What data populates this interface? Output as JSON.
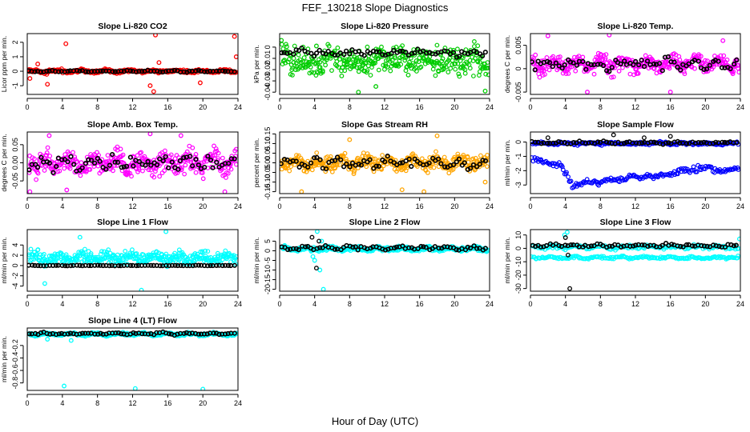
{
  "title": "FEF_130218  Slope Diagnostics",
  "xlabel": "Hour of Day (UTC)",
  "chart_data": [
    {
      "type": "scatter",
      "title": "Slope Li-820 CO2",
      "ylabel": "Licor ppm per min.",
      "xlim": [
        0,
        24
      ],
      "ylim": [
        -1.6,
        2.6
      ],
      "xticks": [
        "0",
        "4",
        "8",
        "12",
        "16",
        "20",
        "24"
      ],
      "yticks": [
        {
          "v": -1,
          "label": "-1"
        },
        {
          "v": 0,
          "label": "0"
        },
        {
          "v": 1,
          "label": "1"
        },
        {
          "v": 2,
          "label": "2"
        }
      ],
      "color": "#ff0000",
      "series": [
        {
          "name": "colored",
          "color": "#ff0000",
          "center": 0.0,
          "spread": 0.12,
          "noise": 0.12,
          "outliers": [
            [
              4.4,
              1.9
            ],
            [
              14.6,
              2.5
            ],
            [
              23.6,
              2.4
            ],
            [
              1.2,
              0.5
            ],
            [
              2.3,
              -0.9
            ],
            [
              23.8,
              1.0
            ],
            [
              14.4,
              -1.4
            ],
            [
              19.7,
              -0.8
            ],
            [
              15.0,
              0.6
            ],
            [
              14.0,
              -1.0
            ],
            [
              0.3,
              -0.5
            ]
          ]
        },
        {
          "name": "reference",
          "color": "#000000",
          "center": 0.0,
          "spread": 0.04,
          "noise": 0.05,
          "outliers": []
        }
      ]
    },
    {
      "type": "scatter",
      "title": "Slope Li-820 Pressure",
      "ylabel": "kPa per min.",
      "xlim": [
        0,
        24
      ],
      "ylim": [
        -0.042,
        0.012
      ],
      "xticks": [
        "0",
        "4",
        "8",
        "12",
        "16",
        "20",
        "24"
      ],
      "yticks": [
        {
          "v": -0.04,
          "label": "-0.04"
        },
        {
          "v": -0.03,
          "label": "-0.03"
        },
        {
          "v": -0.02,
          "label": "-0.02"
        },
        {
          "v": -0.01,
          "label": "-0.01"
        },
        {
          "v": 0.0,
          "label": "0"
        }
      ],
      "color": "#00cc00",
      "series": [
        {
          "name": "colored",
          "color": "#00cc00",
          "center": -0.012,
          "spread": 0.016,
          "noise": 0.006,
          "outliers": [
            [
              0.2,
              0.006
            ],
            [
              4.2,
              0.001
            ],
            [
              9.0,
              -0.04
            ],
            [
              23.5,
              -0.039
            ],
            [
              11.0,
              -0.035
            ]
          ]
        },
        {
          "name": "reference",
          "color": "#000000",
          "center": -0.005,
          "spread": 0.003,
          "noise": 0.003,
          "outliers": []
        }
      ]
    },
    {
      "type": "scatter",
      "title": "Slope Li-820 Temp.",
      "ylabel": "degrees C per min.",
      "xlim": [
        0,
        24
      ],
      "ylim": [
        -0.0055,
        0.0075
      ],
      "xticks": [
        "0",
        "4",
        "8",
        "12",
        "16",
        "20",
        "24"
      ],
      "yticks": [
        {
          "v": -0.005,
          "label": "-0.005"
        },
        {
          "v": 0.0,
          "label": "0"
        },
        {
          "v": 0.005,
          "label": "0.005"
        }
      ],
      "color": "#ff00ff",
      "series": [
        {
          "name": "colored",
          "color": "#ff00ff",
          "center": 0.001,
          "spread": 0.002,
          "noise": 0.0018,
          "outliers": [
            [
              2.0,
              0.007
            ],
            [
              9.0,
              0.0072
            ],
            [
              6.5,
              -0.005
            ],
            [
              16.0,
              -0.005
            ],
            [
              22.0,
              0.006
            ]
          ]
        },
        {
          "name": "reference",
          "color": "#000000",
          "center": 0.001,
          "spread": 0.0015,
          "noise": 0.0012,
          "outliers": []
        }
      ]
    },
    {
      "type": "scatter",
      "title": "Slope Amb. Box Temp.",
      "ylabel": "degrees C per min.",
      "xlim": [
        0,
        24
      ],
      "ylim": [
        -0.085,
        0.085
      ],
      "xticks": [
        "0",
        "4",
        "8",
        "12",
        "16",
        "20",
        "24"
      ],
      "yticks": [
        {
          "v": -0.05,
          "label": "-0.05"
        },
        {
          "v": 0.0,
          "label": "0.00"
        },
        {
          "v": 0.05,
          "label": "0.05"
        }
      ],
      "color": "#ff00ff",
      "series": [
        {
          "name": "colored",
          "color": "#ff00ff",
          "center": 0.0,
          "spread": 0.04,
          "noise": 0.025,
          "outliers": [
            [
              0.3,
              -0.08
            ],
            [
              4.5,
              -0.075
            ],
            [
              17.5,
              0.075
            ],
            [
              22.5,
              -0.08
            ],
            [
              14.0,
              0.08
            ],
            [
              2.5,
              0.075
            ]
          ]
        },
        {
          "name": "reference",
          "color": "#000000",
          "center": 0.0,
          "spread": 0.02,
          "noise": 0.02,
          "outliers": []
        }
      ]
    },
    {
      "type": "scatter",
      "title": "Slope Gas Stream RH",
      "ylabel": "percent per min.",
      "xlim": [
        0,
        24
      ],
      "ylim": [
        -0.16,
        0.16
      ],
      "xticks": [
        "0",
        "4",
        "8",
        "12",
        "16",
        "20",
        "24"
      ],
      "yticks": [
        {
          "v": -0.15,
          "label": "-0.15"
        },
        {
          "v": -0.1,
          "label": "-0.10"
        },
        {
          "v": -0.05,
          "label": "-0.05"
        },
        {
          "v": 0.0,
          "label": "0.00"
        },
        {
          "v": 0.05,
          "label": "0.05"
        },
        {
          "v": 0.1,
          "label": "0.10"
        },
        {
          "v": 0.15,
          "label": "0.15"
        }
      ],
      "color": "#ffa500",
      "series": [
        {
          "name": "colored",
          "color": "#ffa500",
          "center": 0.0,
          "spread": 0.05,
          "noise": 0.035,
          "outliers": [
            [
              2.5,
              -0.15
            ],
            [
              14.0,
              -0.14
            ],
            [
              16.5,
              -0.15
            ],
            [
              18.0,
              0.14
            ],
            [
              8.0,
              0.12
            ],
            [
              23.5,
              -0.1
            ]
          ]
        },
        {
          "name": "reference",
          "color": "#000000",
          "center": 0.0,
          "spread": 0.03,
          "noise": 0.03,
          "outliers": []
        }
      ]
    },
    {
      "type": "scatter",
      "title": "Slope Sample Flow",
      "ylabel": "ml/min per min.",
      "xlim": [
        0,
        24
      ],
      "ylim": [
        -3.6,
        0.7
      ],
      "xticks": [
        "0",
        "4",
        "8",
        "12",
        "16",
        "20",
        "24"
      ],
      "yticks": [
        {
          "v": -3,
          "label": "-3"
        },
        {
          "v": -2,
          "label": "-2"
        },
        {
          "v": -1,
          "label": "-1"
        },
        {
          "v": 0,
          "label": "0"
        }
      ],
      "color": "#0000ff",
      "series": [
        {
          "name": "band-upper",
          "color": "#0000ff",
          "center": -0.1,
          "spread": 0.1,
          "noise": 0.1,
          "outliers": []
        },
        {
          "name": "band-lower",
          "color": "#0000ff",
          "center": -2.2,
          "spread": 0.3,
          "noise": 0.1,
          "path": [
            [
              0.2,
              -1.2
            ],
            [
              2.0,
              -1.4
            ],
            [
              3.5,
              -1.7
            ],
            [
              4.2,
              -2.3
            ],
            [
              4.8,
              -3.1
            ],
            [
              6.0,
              -2.9
            ],
            [
              8.0,
              -2.8
            ],
            [
              10.0,
              -2.6
            ],
            [
              12.0,
              -2.4
            ],
            [
              14.0,
              -2.5
            ],
            [
              16.0,
              -2.2
            ],
            [
              18.0,
              -2.0
            ],
            [
              20.0,
              -1.8
            ],
            [
              22.0,
              -2.0
            ],
            [
              23.9,
              -1.8
            ]
          ],
          "outliers": []
        },
        {
          "name": "reference",
          "color": "#000000",
          "center": -0.05,
          "spread": 0.1,
          "noise": 0.08,
          "outliers": [
            [
              9.5,
              0.5
            ],
            [
              13.0,
              0.3
            ],
            [
              16.0,
              0.4
            ],
            [
              2.0,
              0.3
            ]
          ]
        }
      ]
    },
    {
      "type": "scatter",
      "title": "Slope Line 1 Flow",
      "ylabel": "ml/min per min.",
      "xlim": [
        0,
        24
      ],
      "ylim": [
        -5.0,
        7.0
      ],
      "xticks": [
        "0",
        "4",
        "8",
        "12",
        "16",
        "20",
        "24"
      ],
      "yticks": [
        {
          "v": -4,
          "label": "-4"
        },
        {
          "v": -2,
          "label": "-2"
        },
        {
          "v": 0,
          "label": "0"
        },
        {
          "v": 2,
          "label": "2"
        },
        {
          "v": 4,
          "label": "4"
        }
      ],
      "color": "#00ffff",
      "series": [
        {
          "name": "colored",
          "color": "#00ffff",
          "center": 1.5,
          "spread": 1.5,
          "noise": 1.0,
          "outliers": [
            [
              13.0,
              -4.8
            ],
            [
              15.8,
              6.6
            ],
            [
              6.0,
              5.5
            ],
            [
              2.0,
              -3.5
            ]
          ]
        },
        {
          "name": "reference",
          "color": "#000000",
          "center": 0.0,
          "spread": 0.05,
          "noise": 0.05,
          "outliers": []
        }
      ]
    },
    {
      "type": "scatter",
      "title": "Slope Line 2 Flow",
      "ylabel": "ml/min per min.",
      "xlim": [
        0,
        24
      ],
      "ylim": [
        -21,
        11
      ],
      "xticks": [
        "0",
        "4",
        "8",
        "12",
        "16",
        "20",
        "24"
      ],
      "yticks": [
        {
          "v": -20,
          "label": "-20"
        },
        {
          "v": -15,
          "label": "-15"
        },
        {
          "v": -10,
          "label": "-10"
        },
        {
          "v": -5,
          "label": "-5"
        },
        {
          "v": 0,
          "label": "0"
        },
        {
          "v": 5,
          "label": "5"
        }
      ],
      "color": "#00ffff",
      "series": [
        {
          "name": "colored",
          "color": "#00ffff",
          "center": 1.0,
          "spread": 1.2,
          "noise": 1.0,
          "outliers": [
            [
              4.3,
              10.0
            ],
            [
              4.6,
              -10.0
            ],
            [
              5.0,
              -20.0
            ],
            [
              4.0,
              -5.0
            ],
            [
              4.8,
              5.0
            ],
            [
              3.8,
              -3.0
            ]
          ]
        },
        {
          "name": "reference",
          "color": "#000000",
          "center": 1.5,
          "spread": 1.0,
          "noise": 1.0,
          "outliers": [
            [
              4.2,
              -9.0
            ],
            [
              4.5,
              5.0
            ],
            [
              3.7,
              7.0
            ]
          ]
        }
      ]
    },
    {
      "type": "scatter",
      "title": "Slope Line 3 Flow",
      "ylabel": "ml/min per min.",
      "xlim": [
        0,
        24
      ],
      "ylim": [
        -32,
        14
      ],
      "xticks": [
        "0",
        "4",
        "8",
        "12",
        "16",
        "20",
        "24"
      ],
      "yticks": [
        {
          "v": -30,
          "label": "-30"
        },
        {
          "v": -20,
          "label": "-20"
        },
        {
          "v": -10,
          "label": "-10"
        },
        {
          "v": 0,
          "label": "0"
        },
        {
          "v": 10,
          "label": "10"
        }
      ],
      "color": "#00ffff",
      "series": [
        {
          "name": "band-upper",
          "color": "#00ffff",
          "center": 1.0,
          "spread": 1.5,
          "noise": 1.5,
          "outliers": [
            [
              4.2,
              12.0
            ],
            [
              3.9,
              10.0
            ],
            [
              23.9,
              7.0
            ]
          ]
        },
        {
          "name": "band-lower",
          "color": "#00ffff",
          "center": -7.0,
          "spread": 1.0,
          "noise": 1.0,
          "outliers": []
        },
        {
          "name": "reference",
          "color": "#000000",
          "center": 2.0,
          "spread": 1.5,
          "noise": 1.0,
          "outliers": [
            [
              4.5,
              -30.0
            ],
            [
              4.0,
              8.0
            ],
            [
              4.3,
              -5.0
            ]
          ]
        }
      ]
    },
    {
      "type": "scatter",
      "title": "Slope Line 4 (LT) Flow",
      "ylabel": "ml/min per min.",
      "xlim": [
        0,
        24
      ],
      "ylim": [
        -0.92,
        0.08
      ],
      "xticks": [
        "0",
        "4",
        "8",
        "12",
        "16",
        "20",
        "24"
      ],
      "yticks": [
        {
          "v": -0.8,
          "label": "-0.8"
        },
        {
          "v": -0.6,
          "label": "-0.6"
        },
        {
          "v": -0.4,
          "label": "-0.4"
        },
        {
          "v": -0.2,
          "label": "-0.2"
        }
      ],
      "color": "#00ffff",
      "series": [
        {
          "name": "colored",
          "color": "#00ffff",
          "center": -0.02,
          "spread": 0.02,
          "noise": 0.025,
          "outliers": [
            [
              4.2,
              -0.85
            ],
            [
              12.3,
              -0.89
            ],
            [
              20.0,
              -0.9
            ],
            [
              2.3,
              -0.1
            ],
            [
              5.0,
              -0.12
            ]
          ]
        },
        {
          "name": "reference",
          "color": "#000000",
          "center": -0.01,
          "spread": 0.015,
          "noise": 0.02,
          "outliers": []
        }
      ]
    }
  ]
}
